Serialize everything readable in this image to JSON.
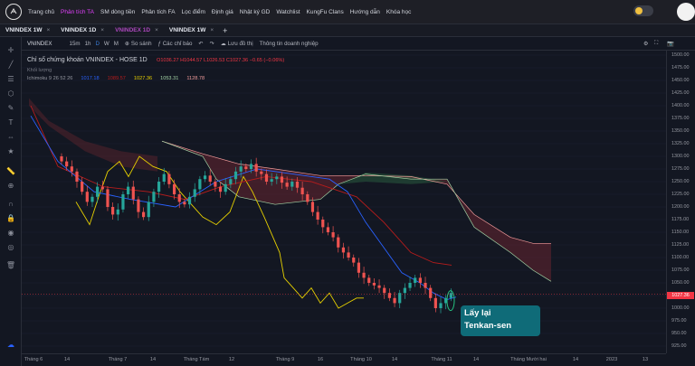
{
  "nav": {
    "items": [
      "Trang chủ",
      "Phân tích TA",
      "SM dòng tiền",
      "Phân tích FA",
      "Lọc điểm",
      "Định giá",
      "Nhật ký GD",
      "Watchlist",
      "KungFu Clans",
      "Hướng dẫn",
      "Khóa học"
    ],
    "active_index": 1
  },
  "tabs": [
    {
      "label": "VNINDEX 1W",
      "active": false
    },
    {
      "label": "VNINDEX 1D",
      "active": false
    },
    {
      "label": "VNINDEX 1D",
      "active": true
    },
    {
      "label": "VNINDEX 1W",
      "active": false
    }
  ],
  "toolbar": {
    "symbol": "VNINDEX",
    "intervals": [
      "15m",
      "1h",
      "D",
      "W",
      "M"
    ],
    "active_interval": "D",
    "compare": "So sánh",
    "indicators": "Các chỉ báo",
    "save": "Lưu đồ thị",
    "fundamentals": "Thông tin doanh nghiệp"
  },
  "legend": {
    "title": "Chỉ số chứng khoán VNINDEX - HOSE  1D",
    "open": "O1036.27",
    "high": "H1044.57",
    "low": "L1026.53",
    "close": "C1027.36",
    "change": "−0.65 (−0.06%)",
    "sub": "Khối lượng",
    "ichimoku_label": "Ichimoku 9 26 52 26",
    "ichimoku_values": [
      {
        "v": "1017.18",
        "color": "#2962ff"
      },
      {
        "v": "1089.57",
        "color": "#b71c1c"
      },
      {
        "v": "1027.36",
        "color": "#e6d000"
      },
      {
        "v": "1053.31",
        "color": "#a5d6a7"
      },
      {
        "v": "1128.78",
        "color": "#ef9a9a"
      }
    ]
  },
  "price_axis": {
    "labels": [
      "1500.00",
      "1475.00",
      "1450.00",
      "1425.00",
      "1400.00",
      "1375.00",
      "1350.00",
      "1325.00",
      "1300.00",
      "1275.00",
      "1250.00",
      "1225.00",
      "1200.00",
      "1175.00",
      "1150.00",
      "1125.00",
      "1100.00",
      "1075.00",
      "1050.00",
      "1025.00",
      "1000.00",
      "975.00",
      "950.00",
      "925.00"
    ],
    "current": "1027.36"
  },
  "time_axis": {
    "labels": [
      "Tháng 6",
      "14",
      "Tháng 7",
      "14",
      "Tháng Tám",
      "12",
      "Tháng 9",
      "16",
      "Tháng 10",
      "14",
      "Tháng 11",
      "14",
      "Tháng Mười hai",
      "14",
      "2023",
      "13"
    ]
  },
  "annotation": {
    "line1": "Lấy lại",
    "line2": "Tenkan-sen"
  },
  "chart_data": {
    "type": "candlestick",
    "title": "Chỉ số chứng khoán VNINDEX - HOSE  1D",
    "ylim": [
      925,
      1500
    ],
    "current_price": 1027.36,
    "x_labels": [
      "Tháng 6",
      "14",
      "Tháng 7",
      "14",
      "Tháng Tám",
      "12",
      "Tháng 9",
      "16",
      "Tháng 10",
      "14",
      "Tháng 11",
      "14",
      "Tháng Mười hai",
      "14",
      "2023",
      "13"
    ],
    "series_colors": {
      "tenkan": "#2962ff",
      "kijun": "#b71c1c",
      "chikou": "#e6d000",
      "senkou_a": "#a5d6a7",
      "senkou_b": "#ef9a9a",
      "up": "#26a69a",
      "down": "#ef5350"
    }
  }
}
